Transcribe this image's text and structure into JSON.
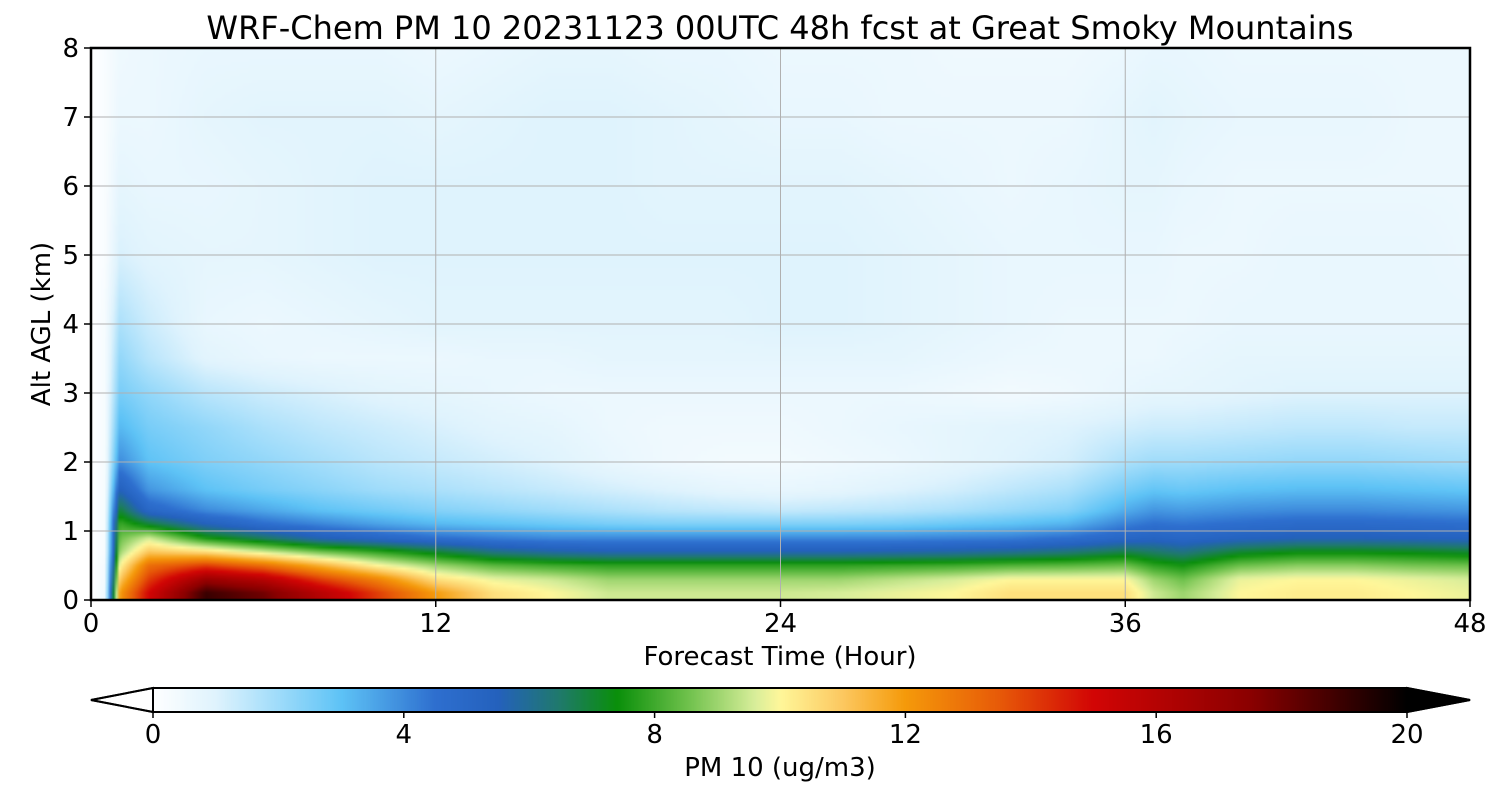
{
  "chart_data": {
    "type": "heatmap",
    "title": "WRF-Chem PM 10  20231123 00UTC 48h fcst at Great Smoky Mountains",
    "xlabel": "Forecast Time (Hour)",
    "ylabel": "Alt AGL (km)",
    "xlim": [
      0,
      48
    ],
    "ylim": [
      0,
      8
    ],
    "x_ticks": [
      "0",
      "12",
      "24",
      "36",
      "48"
    ],
    "x_tick_values": [
      0,
      12,
      24,
      36,
      48
    ],
    "y_ticks": [
      "0",
      "1",
      "2",
      "3",
      "4",
      "5",
      "6",
      "7",
      "8"
    ],
    "y_tick_values": [
      0,
      1,
      2,
      3,
      4,
      5,
      6,
      7,
      8
    ],
    "grid": true,
    "colorbar": {
      "label": "PM 10  (ug/m3)",
      "range": [
        0,
        20
      ],
      "extend": "both",
      "ticks": [
        "0",
        "4",
        "8",
        "12",
        "16",
        "20"
      ],
      "tick_values": [
        0,
        4,
        8,
        12,
        16,
        20
      ],
      "color_stops": [
        {
          "value": 0,
          "color": "#ffffff"
        },
        {
          "value": 1,
          "color": "#dff3fd"
        },
        {
          "value": 2,
          "color": "#9fdcfa"
        },
        {
          "value": 3,
          "color": "#5ec3f6"
        },
        {
          "value": 4.5,
          "color": "#2e6fcf"
        },
        {
          "value": 5.5,
          "color": "#2461bd"
        },
        {
          "value": 6.5,
          "color": "#1f7a6a"
        },
        {
          "value": 7.4,
          "color": "#0a8f0a"
        },
        {
          "value": 8.5,
          "color": "#6cc04a"
        },
        {
          "value": 9.6,
          "color": "#d8ee9a"
        },
        {
          "value": 10.0,
          "color": "#fff79a"
        },
        {
          "value": 11.0,
          "color": "#fcc860"
        },
        {
          "value": 12.0,
          "color": "#f59a0a"
        },
        {
          "value": 13.5,
          "color": "#e75a08"
        },
        {
          "value": 15.0,
          "color": "#d20505"
        },
        {
          "value": 17.5,
          "color": "#8b0000"
        },
        {
          "value": 20.0,
          "color": "#000000"
        }
      ]
    },
    "times": [
      0,
      0.5,
      1,
      2,
      4,
      6,
      8,
      10,
      12,
      14,
      16,
      18,
      20,
      22,
      24,
      26,
      28,
      30,
      32,
      34,
      36,
      37,
      38,
      40,
      42,
      44,
      46,
      48
    ],
    "heights": [
      0,
      0.1,
      0.3,
      0.5,
      0.7,
      0.9,
      1.1,
      1.3,
      1.6,
      2.0,
      2.5,
      3.0,
      3.5,
      4.0,
      5.0,
      6.0,
      7.0,
      8.0
    ],
    "values": [
      [
        0,
        0.5,
        12,
        15,
        19,
        18,
        16,
        14,
        12,
        10.5,
        10,
        9.5,
        9.5,
        9.5,
        9.5,
        9.6,
        9.8,
        10,
        10.5,
        10.5,
        10.5,
        9.5,
        9,
        10,
        10.2,
        10.2,
        10,
        9.8
      ],
      [
        0,
        0.5,
        12,
        15,
        19,
        18,
        16,
        14,
        12,
        10.5,
        10,
        9.5,
        9.5,
        9.5,
        9.5,
        9.6,
        9.8,
        10,
        10.5,
        10.5,
        10.5,
        9.5,
        9,
        10,
        10.2,
        10.2,
        10,
        9.8
      ],
      [
        0,
        0.4,
        11,
        14,
        17,
        16,
        14,
        12.5,
        10.5,
        9.8,
        9.5,
        9,
        9,
        9,
        9,
        9,
        9.3,
        9.6,
        10,
        10,
        10,
        9,
        8.5,
        9.8,
        10,
        10,
        9.8,
        9.6
      ],
      [
        0,
        0.4,
        10,
        13,
        14,
        13,
        11.5,
        10,
        9,
        8.3,
        8,
        7.8,
        7.8,
        7.8,
        7.8,
        7.8,
        7.9,
        8,
        8.2,
        8.3,
        8.5,
        7.8,
        7.5,
        8.5,
        8.8,
        8.8,
        8.6,
        8.5
      ],
      [
        0,
        0.3,
        9,
        11,
        10.5,
        9.5,
        8.5,
        7.8,
        7,
        6.2,
        5.8,
        5.6,
        5.6,
        5.6,
        5.6,
        5.6,
        5.7,
        5.8,
        6,
        6.3,
        6.8,
        6.5,
        6.2,
        7,
        7.3,
        7.3,
        7.2,
        7.0
      ],
      [
        0,
        0.3,
        8.5,
        9.5,
        7.5,
        6.5,
        5.5,
        5,
        4.5,
        4.2,
        4,
        4,
        4,
        4,
        4,
        4,
        4,
        4.1,
        4.2,
        4.5,
        5,
        5.2,
        5,
        5.3,
        5.5,
        5.5,
        5.4,
        5.3
      ],
      [
        0,
        0.3,
        8,
        7,
        5.5,
        4.6,
        4.1,
        3.6,
        3.2,
        3,
        2.8,
        2.6,
        2.5,
        2.5,
        2.5,
        2.5,
        2.6,
        2.8,
        3,
        3.3,
        4.2,
        4.5,
        4.4,
        4.6,
        4.8,
        4.8,
        4.7,
        4.6
      ],
      [
        0,
        0.3,
        7,
        5,
        4,
        3.5,
        3,
        2.7,
        2.4,
        2.2,
        2,
        1.8,
        1.6,
        1.5,
        1.4,
        1.5,
        1.6,
        1.8,
        2.1,
        2.4,
        3.4,
        3.8,
        3.7,
        3.9,
        4.0,
        4.0,
        3.9,
        3.8
      ],
      [
        0,
        0.3,
        5.5,
        3.8,
        3,
        2.6,
        2.3,
        2,
        1.8,
        1.6,
        1.4,
        1.2,
        1,
        0.8,
        0.7,
        0.8,
        1,
        1.2,
        1.5,
        1.8,
        2.6,
        2.9,
        2.8,
        3.0,
        3.1,
        3.1,
        3.0,
        2.9
      ],
      [
        0,
        0.3,
        4,
        3,
        2.5,
        2.2,
        1.9,
        1.6,
        1.4,
        1.2,
        1,
        0.7,
        0.5,
        0.4,
        0.4,
        0.5,
        0.6,
        0.8,
        1,
        1.2,
        1.8,
        2.0,
        2.0,
        2.1,
        2.2,
        2.2,
        2.1,
        2.0
      ],
      [
        0,
        0.3,
        3.2,
        2.6,
        2.2,
        1.8,
        1.5,
        1.3,
        1.1,
        0.9,
        0.8,
        0.6,
        0.5,
        0.5,
        0.5,
        0.6,
        0.7,
        0.8,
        0.9,
        1,
        1.2,
        1.3,
        1.3,
        1.4,
        1.5,
        1.5,
        1.4,
        1.4
      ],
      [
        0,
        0.3,
        2.6,
        2.2,
        1.6,
        1.3,
        1.1,
        0.9,
        0.8,
        0.7,
        0.6,
        0.6,
        0.6,
        0.6,
        0.6,
        0.6,
        0.6,
        0.5,
        0.4,
        0.5,
        0.7,
        0.8,
        0.8,
        0.9,
        1.0,
        1.0,
        1.0,
        1.0
      ],
      [
        0,
        0.3,
        2.2,
        1.6,
        0.9,
        0.7,
        0.6,
        0.6,
        0.6,
        0.7,
        0.7,
        0.8,
        0.8,
        0.8,
        0.8,
        0.8,
        0.8,
        0.7,
        0.6,
        0.6,
        0.6,
        0.6,
        0.7,
        0.8,
        0.8,
        0.8,
        0.8,
        0.8
      ],
      [
        0,
        0.3,
        1.8,
        1.3,
        0.7,
        0.6,
        0.7,
        0.8,
        0.9,
        0.9,
        0.9,
        0.9,
        0.9,
        0.9,
        1,
        1,
        0.9,
        0.8,
        0.7,
        0.6,
        0.6,
        0.6,
        0.6,
        0.7,
        0.7,
        0.7,
        0.7,
        0.7
      ],
      [
        0,
        0.2,
        1.1,
        0.9,
        0.8,
        0.8,
        0.9,
        1,
        1,
        1,
        1,
        1,
        1,
        1,
        1,
        1,
        0.9,
        0.8,
        0.7,
        0.7,
        0.7,
        0.7,
        0.6,
        0.6,
        0.7,
        0.7,
        0.7,
        0.6
      ],
      [
        0,
        0.2,
        0.8,
        0.7,
        0.7,
        0.8,
        0.9,
        1,
        1,
        1,
        1,
        1,
        0.9,
        0.9,
        0.9,
        0.9,
        0.8,
        0.7,
        0.6,
        0.7,
        0.8,
        0.8,
        0.7,
        0.6,
        0.6,
        0.6,
        0.6,
        0.6
      ],
      [
        0,
        0.2,
        0.6,
        0.6,
        0.8,
        0.9,
        0.9,
        0.9,
        0.8,
        0.9,
        1,
        1,
        0.9,
        0.8,
        0.7,
        0.7,
        0.6,
        0.6,
        0.6,
        0.6,
        0.8,
        0.9,
        0.8,
        0.7,
        0.7,
        0.7,
        0.6,
        0.6
      ],
      [
        0,
        0.2,
        0.5,
        0.6,
        0.7,
        0.7,
        0.7,
        0.7,
        0.6,
        0.7,
        0.8,
        0.8,
        0.7,
        0.7,
        0.6,
        0.6,
        0.6,
        0.5,
        0.5,
        0.5,
        0.6,
        0.7,
        0.7,
        0.6,
        0.6,
        0.6,
        0.6,
        0.6
      ]
    ]
  }
}
